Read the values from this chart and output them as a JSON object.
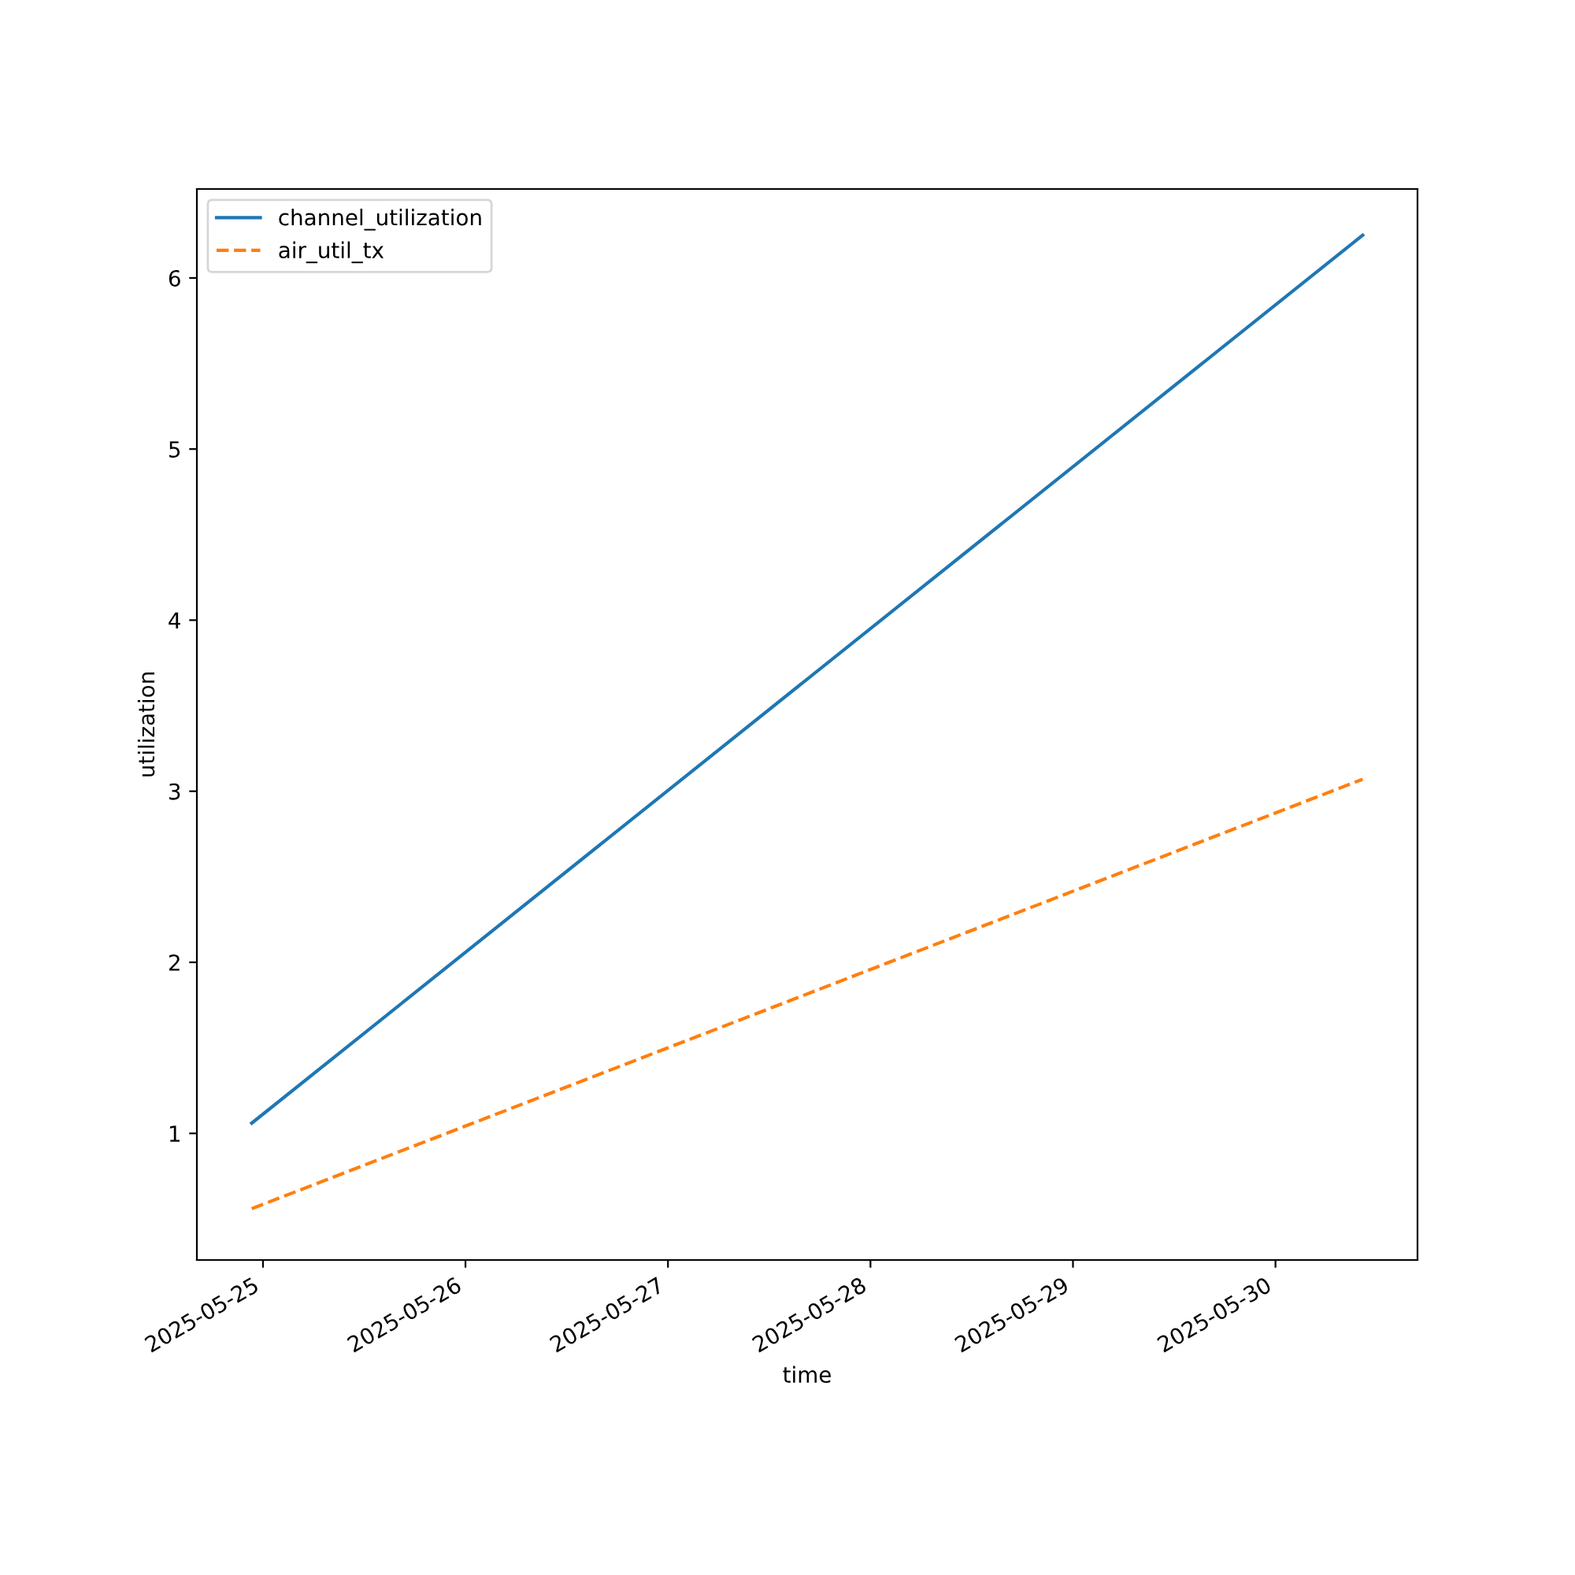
{
  "chart_data": {
    "type": "line",
    "xlabel": "time",
    "ylabel": "utilization",
    "series": [
      {
        "name": "channel_utilization",
        "color": "#1f77b4",
        "line_style": "solid",
        "x": [
          "2025-05-24T22:40",
          "2025-05-30T10:20"
        ],
        "values": [
          1.06,
          6.25
        ]
      },
      {
        "name": "air_util_tx",
        "color": "#ff7f0e",
        "line_style": "dashed",
        "x": [
          "2025-05-24T22:40",
          "2025-05-30T10:20"
        ],
        "values": [
          0.56,
          3.07
        ]
      }
    ],
    "xlim": [
      "2025-05-24T16:10",
      "2025-05-30T16:50"
    ],
    "xticks": [
      "2025-05-25",
      "2025-05-26",
      "2025-05-27",
      "2025-05-28",
      "2025-05-29",
      "2025-05-30"
    ],
    "ylim": [
      0.26,
      6.52
    ],
    "yticks": [
      1,
      2,
      3,
      4,
      5,
      6
    ],
    "grid": false,
    "legend": "top left",
    "marker": "none"
  }
}
